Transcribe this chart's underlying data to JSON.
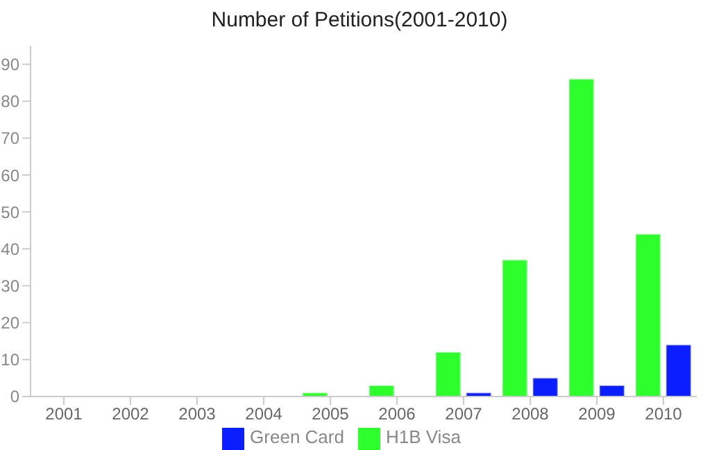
{
  "chart_data": {
    "type": "bar",
    "title": "Number of Petitions(2001-2010)",
    "categories": [
      "2001",
      "2002",
      "2003",
      "2004",
      "2005",
      "2006",
      "2007",
      "2008",
      "2009",
      "2010"
    ],
    "series": [
      {
        "name": "H1B Visa",
        "color": "#2dff2d",
        "values": [
          0,
          0,
          0,
          0,
          1,
          3,
          12,
          37,
          86,
          44
        ]
      },
      {
        "name": "Green Card",
        "color": "#0a1eff",
        "values": [
          0,
          0,
          0,
          0,
          0,
          0,
          1,
          5,
          3,
          14
        ]
      }
    ],
    "ylim": [
      0,
      95
    ],
    "yticks": [
      0,
      10,
      20,
      30,
      40,
      50,
      60,
      70,
      80,
      90
    ],
    "grid": false,
    "legend": "bottom"
  }
}
